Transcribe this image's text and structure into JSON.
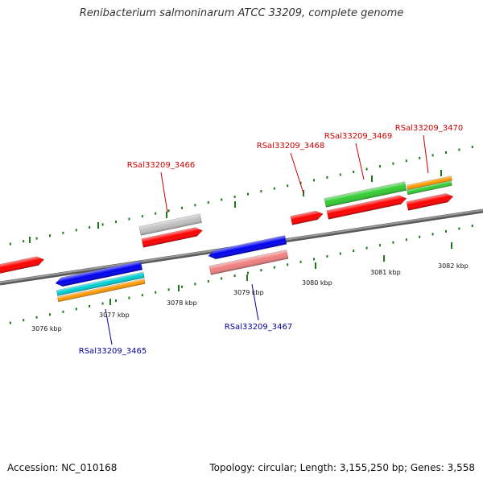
{
  "title": "Renibacterium salmoninarum ATCC 33209, complete genome",
  "footer": {
    "accession": "Accession: NC_010168",
    "stats": "Topology: circular; Length: 3,155,250 bp; Genes: 3,558"
  },
  "colors": {
    "plus_label": "#cc0000",
    "minus_label": "#000099",
    "backbone": "#808080",
    "tick": "#1a7a1a"
  },
  "kbp_ticks": [
    "3076 kbp",
    "3077 kbp",
    "3078 kbp",
    "3079 kbp",
    "3080 kbp",
    "3081 kbp",
    "3082 kbp"
  ],
  "gene_labels": [
    {
      "id": "g3465",
      "text": "RSal33209_3465",
      "strand": "minus"
    },
    {
      "id": "g3466",
      "text": "RSal33209_3466",
      "strand": "plus"
    },
    {
      "id": "g3467",
      "text": "RSal33209_3467",
      "strand": "minus"
    },
    {
      "id": "g3468",
      "text": "RSal33209_3468",
      "strand": "plus"
    },
    {
      "id": "g3469",
      "text": "RSal33209_3469",
      "strand": "plus"
    },
    {
      "id": "g3470",
      "text": "RSal33209_3470",
      "strand": "plus"
    }
  ],
  "features": [
    {
      "id": "f-red-left",
      "color": "#ff0000",
      "dir": "right"
    },
    {
      "id": "f-blue-3465",
      "color": "#0000ee",
      "dir": "left"
    },
    {
      "id": "f-cyan-3465",
      "color": "#00d0d0",
      "dir": "none"
    },
    {
      "id": "f-orange-3465",
      "color": "#ff9900",
      "dir": "none"
    },
    {
      "id": "f-gray-3466",
      "color": "#c0c0c0",
      "dir": "none"
    },
    {
      "id": "f-red-3466",
      "color": "#ff0000",
      "dir": "right"
    },
    {
      "id": "f-blue-3467",
      "color": "#0000ee",
      "dir": "left"
    },
    {
      "id": "f-pink-3467",
      "color": "#f08080",
      "dir": "none"
    },
    {
      "id": "f-red-3468",
      "color": "#ff0000",
      "dir": "right"
    },
    {
      "id": "f-green-3469",
      "color": "#33cc33",
      "dir": "none"
    },
    {
      "id": "f-red-3469",
      "color": "#ff0000",
      "dir": "right"
    },
    {
      "id": "f-orange-3470",
      "color": "#ff9900",
      "dir": "none"
    },
    {
      "id": "f-green-3470",
      "color": "#33cc33",
      "dir": "none"
    },
    {
      "id": "f-red-3470",
      "color": "#ff0000",
      "dir": "right"
    }
  ]
}
